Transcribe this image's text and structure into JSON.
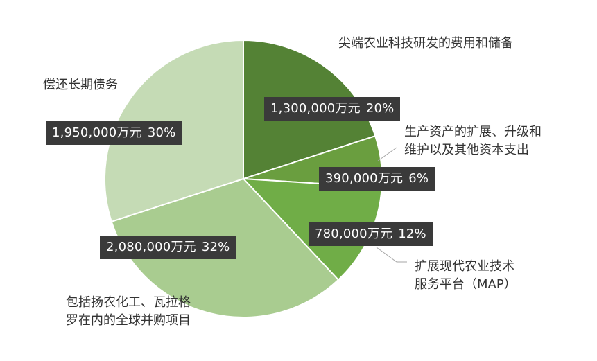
{
  "chart_data": {
    "type": "pie",
    "title": "",
    "unit": "万元",
    "start_angle_deg": 0,
    "direction": "clockwise",
    "slices": [
      {
        "label_lines": [
          "尖端农业科技研发的费用和储备"
        ],
        "value": 1300000,
        "value_text": "1,300,000万元",
        "percent_text": "20%",
        "color": "#548235"
      },
      {
        "label_lines": [
          "生产资产的扩展、升级和",
          "维护以及其他资本支出"
        ],
        "value": 390000,
        "value_text": "390,000万元",
        "percent_text": "6%",
        "color": "#6a9e3f"
      },
      {
        "label_lines": [
          "扩展现代农业技术",
          "服务平台（MAP）"
        ],
        "value": 780000,
        "value_text": "780,000万元",
        "percent_text": "12%",
        "color": "#70ad47"
      },
      {
        "label_lines": [
          "包括扬农化工、瓦拉格",
          "罗在内的全球并购项目"
        ],
        "value": 2080000,
        "value_text": "2,080,000万元",
        "percent_text": "32%",
        "color": "#a9cc90"
      },
      {
        "label_lines": [
          "偿还长期债务"
        ],
        "value": 1950000,
        "value_text": "1,950,000万元",
        "percent_text": "30%",
        "color": "#c5dbb5"
      }
    ]
  }
}
